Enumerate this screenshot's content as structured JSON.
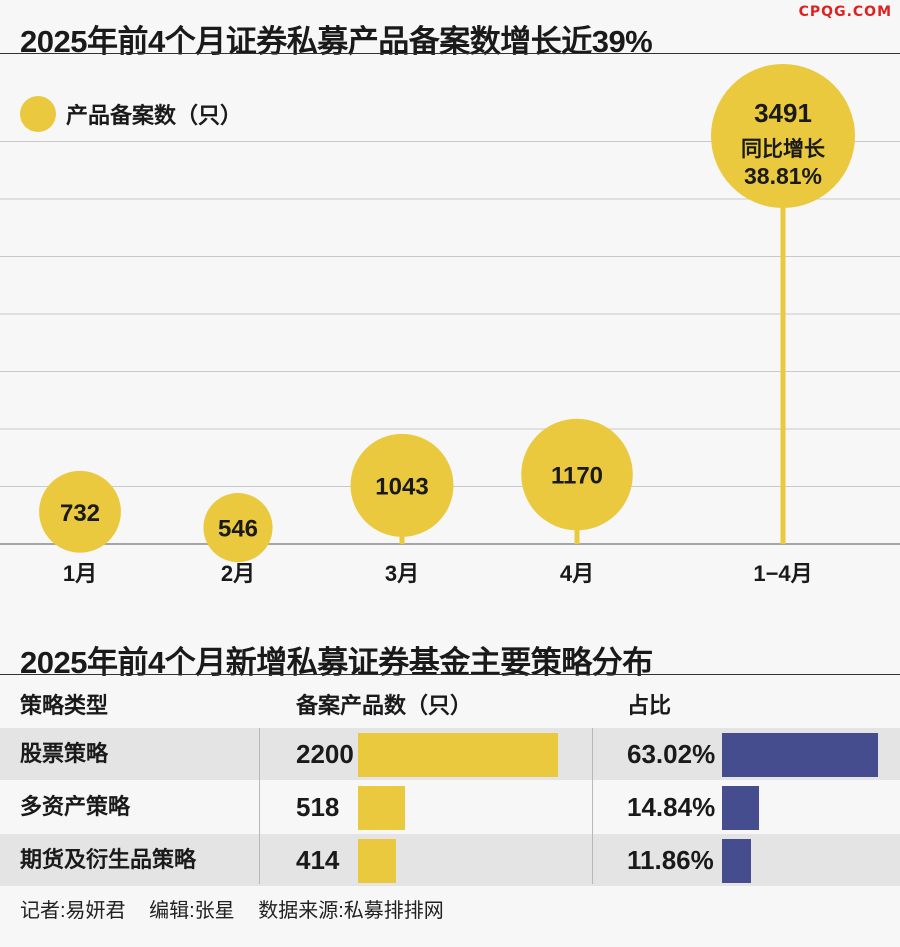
{
  "logo": "CPQG.COM",
  "title1": "2025年前4个月证券私募产品备案数增长近39%",
  "title2": "2025年前4个月新增私募证券基金主要策略分布",
  "colors": {
    "yellow": "#eac93e",
    "blue": "#464d8f",
    "grid": "#c9c9c9",
    "stripe": "#e4e4e4"
  },
  "chart_data": {
    "type": "bubble-lollipop",
    "legend": "产品备案数（只）",
    "categories": [
      "1月",
      "2月",
      "3月",
      "4月",
      "1−4月"
    ],
    "values": [
      732,
      546,
      1043,
      1170,
      3491
    ],
    "annotation": {
      "line1": "同比增长",
      "line2": "38.81%"
    }
  },
  "table": {
    "headers": [
      "策略类型",
      "备案产品数（只）",
      "占比"
    ],
    "rows": [
      {
        "name": "股票策略",
        "count": "2200",
        "count_value": 2200,
        "pct": "63.02%",
        "pct_value": 63.02
      },
      {
        "name": "多资产策略",
        "count": "518",
        "count_value": 518,
        "pct": "14.84%",
        "pct_value": 14.84
      },
      {
        "name": "期货及衍生品策略",
        "count": "414",
        "count_value": 414,
        "pct": "11.86%",
        "pct_value": 11.86
      }
    ]
  },
  "credits": [
    "记者:易妍君",
    "编辑:张星",
    "数据来源:私募排排网"
  ]
}
